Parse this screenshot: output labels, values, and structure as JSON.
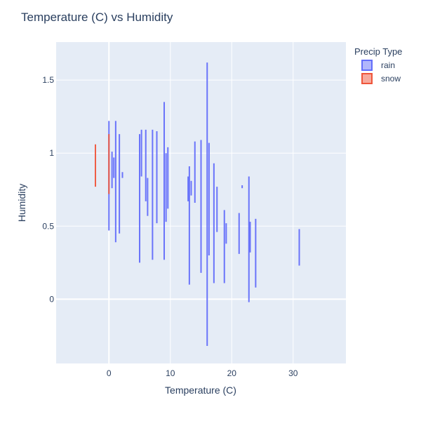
{
  "chart_data": {
    "type": "violin",
    "title": "Temperature (C) vs Humidity",
    "xlabel": "Temperature (C)",
    "ylabel": "Humidity",
    "xlim": [
      -8.6,
      38.6
    ],
    "ylim": [
      -0.44,
      1.76
    ],
    "x_ticks": [
      0,
      10,
      20,
      30
    ],
    "y_ticks": [
      0,
      0.5,
      1,
      1.5
    ],
    "x_tick_labels": [
      "0",
      "10",
      "20",
      "30"
    ],
    "y_tick_labels": [
      "0",
      "0.5",
      "1",
      "1.5"
    ],
    "grid": true,
    "legend": {
      "title": "Precip Type",
      "placement": "top-right",
      "entries": [
        {
          "name": "rain",
          "color": "#636efa"
        },
        {
          "name": "snow",
          "color": "#ef553b"
        }
      ]
    },
    "series": [
      {
        "name": "rain",
        "color": "#636efa",
        "violins": [
          {
            "x": 0.0,
            "y_min": 0.47,
            "y_max": 1.22
          },
          {
            "x": 0.5,
            "y_min": 0.76,
            "y_max": 1.01
          },
          {
            "x": 0.8,
            "y_min": 0.83,
            "y_max": 0.97
          },
          {
            "x": 1.1,
            "y_min": 0.39,
            "y_max": 1.22
          },
          {
            "x": 1.7,
            "y_min": 0.45,
            "y_max": 1.13
          },
          {
            "x": 2.2,
            "y_min": 0.83,
            "y_max": 0.87
          },
          {
            "x": 5.0,
            "y_min": 0.25,
            "y_max": 1.13
          },
          {
            "x": 5.3,
            "y_min": 0.84,
            "y_max": 1.16
          },
          {
            "x": 6.0,
            "y_min": 0.67,
            "y_max": 1.16
          },
          {
            "x": 6.3,
            "y_min": 0.57,
            "y_max": 0.83
          },
          {
            "x": 7.1,
            "y_min": 0.27,
            "y_max": 1.16
          },
          {
            "x": 7.8,
            "y_min": 0.52,
            "y_max": 1.15
          },
          {
            "x": 9.0,
            "y_min": 0.27,
            "y_max": 1.35
          },
          {
            "x": 9.3,
            "y_min": 0.53,
            "y_max": 1.0
          },
          {
            "x": 9.6,
            "y_min": 0.62,
            "y_max": 1.04
          },
          {
            "x": 12.9,
            "y_min": 0.67,
            "y_max": 0.84
          },
          {
            "x": 13.1,
            "y_min": 0.1,
            "y_max": 0.91
          },
          {
            "x": 13.4,
            "y_min": 0.71,
            "y_max": 0.81
          },
          {
            "x": 14.0,
            "y_min": 0.66,
            "y_max": 1.08
          },
          {
            "x": 15.0,
            "y_min": 0.18,
            "y_max": 1.09
          },
          {
            "x": 16.0,
            "y_min": -0.32,
            "y_max": 1.62
          },
          {
            "x": 16.3,
            "y_min": 0.3,
            "y_max": 1.07
          },
          {
            "x": 17.1,
            "y_min": 0.11,
            "y_max": 0.93
          },
          {
            "x": 17.6,
            "y_min": 0.46,
            "y_max": 0.77
          },
          {
            "x": 18.8,
            "y_min": 0.11,
            "y_max": 0.61
          },
          {
            "x": 19.1,
            "y_min": 0.38,
            "y_max": 0.52
          },
          {
            "x": 21.2,
            "y_min": 0.31,
            "y_max": 0.59
          },
          {
            "x": 21.7,
            "y_min": 0.76,
            "y_max": 0.78
          },
          {
            "x": 22.8,
            "y_min": -0.02,
            "y_max": 0.84
          },
          {
            "x": 23.0,
            "y_min": 0.32,
            "y_max": 0.53
          },
          {
            "x": 23.9,
            "y_min": 0.08,
            "y_max": 0.55
          },
          {
            "x": 31.0,
            "y_min": 0.23,
            "y_max": 0.48
          }
        ]
      },
      {
        "name": "snow",
        "color": "#ef553b",
        "violins": [
          {
            "x": -2.2,
            "y_min": 0.77,
            "y_max": 1.06
          },
          {
            "x": 0.0,
            "y_min": 0.72,
            "y_max": 1.13
          }
        ]
      }
    ]
  }
}
